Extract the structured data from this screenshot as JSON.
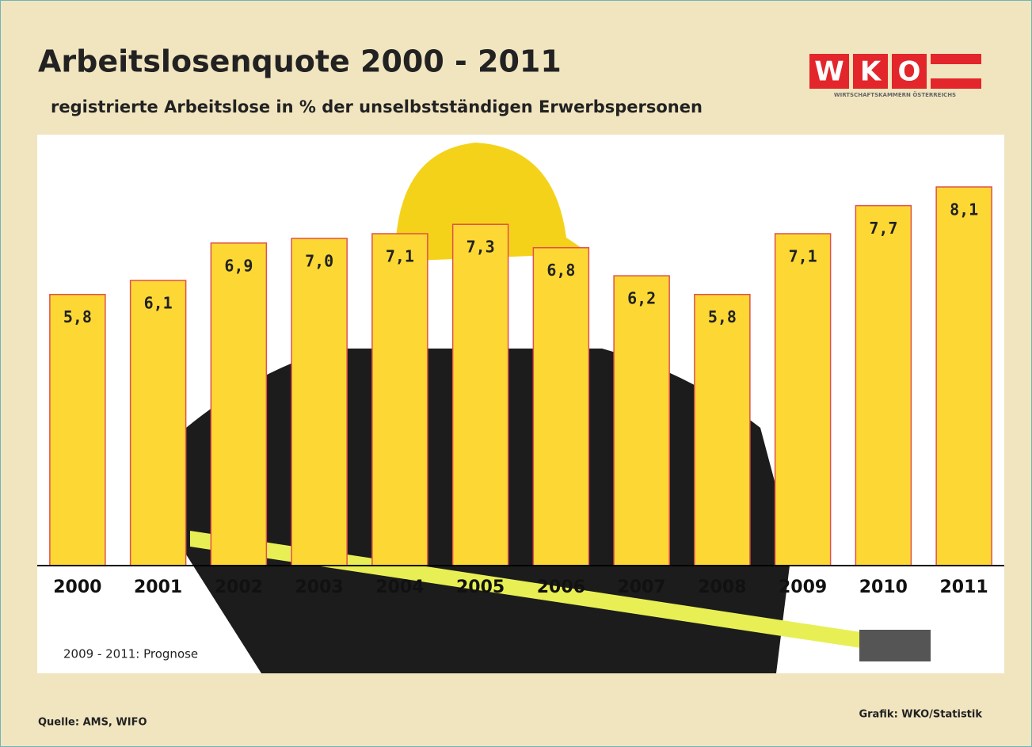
{
  "chart_data": {
    "type": "bar",
    "title": "Arbeitslosenquote 2000 - 2011",
    "subtitle": "registrierte Arbeitslose in % der unselbstständigen Erwerbspersonen",
    "categories": [
      "2000",
      "2001",
      "2002",
      "2003",
      "2004",
      "2005",
      "2006",
      "2007",
      "2008",
      "2009",
      "2010",
      "2011"
    ],
    "values": [
      5.8,
      6.1,
      6.9,
      7.0,
      7.1,
      7.3,
      6.8,
      6.2,
      5.8,
      7.1,
      7.7,
      8.1
    ],
    "value_labels": [
      "5,8",
      "6,1",
      "6,9",
      "7,0",
      "7,1",
      "7,3",
      "6,8",
      "6,2",
      "5,8",
      "7,1",
      "7,7",
      "8,1"
    ],
    "color": "#fdd835",
    "edge_color": "#e0504a",
    "note": "2009 - 2011: Prognose",
    "source": "Quelle: AMS, WIFO",
    "credit": "Grafik: WKO/Statistik"
  },
  "logo": {
    "letters": [
      "W",
      "K",
      "O"
    ],
    "tagline": "WIRTSCHAFTSKAMMERN ÖSTERREICHS"
  }
}
